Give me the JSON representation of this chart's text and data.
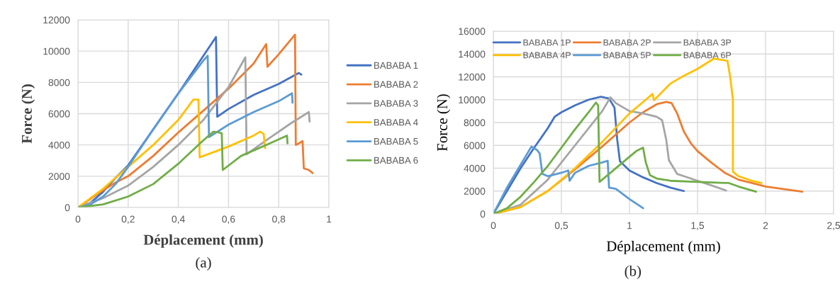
{
  "chart_data": [
    {
      "type": "line",
      "xlabel": "Déplacement (mm)",
      "ylabel": "Force (N)",
      "annotations": [
        "(a)"
      ],
      "xlim": [
        0,
        1
      ],
      "xticks": [
        0,
        {
          "value": 0.2,
          "label": "0,2"
        },
        {
          "value": 0.4,
          "label": "0,4"
        },
        {
          "value": 0.6,
          "label": "0,6"
        },
        {
          "value": 0.8,
          "label": "0,8"
        },
        1
      ],
      "ylim": [
        0,
        12000
      ],
      "yticks": [
        0,
        2000,
        4000,
        6000,
        8000,
        10000,
        12000
      ],
      "grid": true,
      "legend": "right",
      "series": [
        {
          "name": "BABABA 1",
          "color": "#4472c4",
          "x": [
            0,
            0.05,
            0.1,
            0.15,
            0.2,
            0.3,
            0.4,
            0.5,
            0.55,
            0.555,
            0.6,
            0.7,
            0.8,
            0.88,
            0.89
          ],
          "values": [
            0,
            300,
            1000,
            1900,
            2700,
            5000,
            7300,
            9700,
            10900,
            5800,
            6300,
            7200,
            7900,
            8600,
            8500
          ]
        },
        {
          "name": "BABABA 2",
          "color": "#ed7d31",
          "x": [
            0,
            0.1,
            0.15,
            0.2,
            0.3,
            0.4,
            0.5,
            0.6,
            0.7,
            0.75,
            0.755,
            0.8,
            0.865,
            0.868,
            0.88,
            0.895,
            0.9,
            0.92,
            0.935
          ],
          "values": [
            0,
            1100,
            1600,
            2000,
            3300,
            4800,
            6200,
            7600,
            9200,
            10450,
            9000,
            9800,
            11050,
            4000,
            4100,
            4250,
            2500,
            2400,
            2200
          ]
        },
        {
          "name": "BABABA 3",
          "color": "#a5a5a5",
          "x": [
            0,
            0.1,
            0.2,
            0.3,
            0.4,
            0.5,
            0.6,
            0.667,
            0.672,
            0.75,
            0.85,
            0.92,
            0.923
          ],
          "values": [
            0,
            600,
            1400,
            2600,
            4000,
            5600,
            7700,
            9600,
            3400,
            4300,
            5400,
            6100,
            5500
          ]
        },
        {
          "name": "BABABA 4",
          "color": "#ffc000",
          "x": [
            0,
            0.1,
            0.2,
            0.3,
            0.4,
            0.46,
            0.48,
            0.485,
            0.5,
            0.6,
            0.7,
            0.726,
            0.74,
            0.746
          ],
          "values": [
            0,
            1200,
            2600,
            4000,
            5600,
            6900,
            6900,
            3200,
            3300,
            3900,
            4600,
            4850,
            4700,
            3800
          ]
        },
        {
          "name": "BABABA 5",
          "color": "#5b9bd5",
          "x": [
            0,
            0.05,
            0.1,
            0.15,
            0.2,
            0.3,
            0.4,
            0.5,
            0.517,
            0.522,
            0.6,
            0.7,
            0.8,
            0.853,
            0.855
          ],
          "values": [
            0,
            200,
            700,
            1500,
            2600,
            5000,
            7300,
            9400,
            9700,
            4500,
            5300,
            6100,
            6800,
            7300,
            6700
          ]
        },
        {
          "name": "BABABA 6",
          "color": "#70ad47",
          "x": [
            0,
            0.1,
            0.2,
            0.3,
            0.4,
            0.5,
            0.54,
            0.56,
            0.573,
            0.577,
            0.65,
            0.75,
            0.833,
            0.835
          ],
          "values": [
            0,
            200,
            700,
            1500,
            2800,
            4300,
            4850,
            4800,
            4750,
            2400,
            3300,
            4000,
            4600,
            4100
          ]
        }
      ]
    },
    {
      "type": "line",
      "xlabel": "Déplacement (mm)",
      "ylabel": "Force (N)",
      "annotations": [
        "(b)"
      ],
      "xlim": [
        0,
        2.5
      ],
      "xticks": [
        0,
        {
          "value": 0.5,
          "label": "0,5"
        },
        1,
        {
          "value": 1.5,
          "label": "1,5"
        },
        2,
        {
          "value": 2.5,
          "label": "2,5"
        }
      ],
      "ylim": [
        0,
        16000
      ],
      "yticks": [
        0,
        2000,
        4000,
        6000,
        8000,
        10000,
        12000,
        14000,
        16000
      ],
      "grid": true,
      "legend": "top",
      "series": [
        {
          "name": "BABABA 1P",
          "color": "#4472c4",
          "x": [
            0,
            0.1,
            0.2,
            0.3,
            0.4,
            0.45,
            0.5,
            0.6,
            0.7,
            0.79,
            0.85,
            0.89,
            0.91,
            0.93,
            1,
            1.1,
            1.2,
            1.3,
            1.4
          ],
          "values": [
            0,
            2000,
            4000,
            5800,
            7500,
            8500,
            8900,
            9500,
            10000,
            10250,
            10100,
            9300,
            6500,
            4600,
            3800,
            3200,
            2700,
            2300,
            2000
          ]
        },
        {
          "name": "BABABA 2P",
          "color": "#ed7d31",
          "x": [
            0,
            0.2,
            0.4,
            0.6,
            0.8,
            1,
            1.1,
            1.2,
            1.27,
            1.31,
            1.35,
            1.4,
            1.45,
            1.5,
            1.6,
            1.7,
            1.8,
            1.9,
            2,
            2.27
          ],
          "values": [
            0,
            600,
            2000,
            3900,
            5900,
            8000,
            8900,
            9600,
            9800,
            9700,
            8800,
            7200,
            6200,
            5500,
            4500,
            3600,
            3000,
            2700,
            2400,
            1950
          ]
        },
        {
          "name": "BABABA 3P",
          "color": "#a5a5a5",
          "x": [
            0,
            0.2,
            0.4,
            0.6,
            0.8,
            0.86,
            0.9,
            1,
            1.1,
            1.2,
            1.24,
            1.27,
            1.29,
            1.35,
            1.4,
            1.5,
            1.6,
            1.71
          ],
          "values": [
            0,
            800,
            3000,
            6000,
            9000,
            10200,
            9700,
            9000,
            8800,
            8500,
            8200,
            6500,
            4700,
            3500,
            3300,
            2900,
            2500,
            2050
          ]
        },
        {
          "name": "BABABA 4P",
          "color": "#ffc000",
          "x": [
            0,
            0.2,
            0.4,
            0.6,
            0.8,
            1,
            1.1,
            1.17,
            1.18,
            1.3,
            1.4,
            1.5,
            1.62,
            1.72,
            1.74,
            1.76,
            1.76,
            1.8,
            1.9,
            1.97
          ],
          "values": [
            0,
            600,
            2000,
            4000,
            6300,
            8800,
            9800,
            10500,
            9950,
            11400,
            12100,
            12700,
            13600,
            13400,
            12000,
            10000,
            3700,
            3300,
            2900,
            2700
          ]
        },
        {
          "name": "BABABA 5P",
          "color": "#5b9bd5",
          "x": [
            0,
            0.1,
            0.2,
            0.28,
            0.32,
            0.34,
            0.36,
            0.4,
            0.5,
            0.55,
            0.56,
            0.6,
            0.7,
            0.8,
            0.84,
            0.85,
            0.9,
            1,
            1.1
          ],
          "values": [
            0,
            2300,
            4300,
            5900,
            5600,
            5300,
            3500,
            3300,
            3600,
            3800,
            2900,
            3600,
            4200,
            4500,
            4650,
            2300,
            2200,
            1300,
            500
          ]
        },
        {
          "name": "BABABA 6P",
          "color": "#70ad47",
          "x": [
            0,
            0.1,
            0.2,
            0.3,
            0.4,
            0.5,
            0.6,
            0.7,
            0.754,
            0.77,
            0.78,
            0.85,
            0.95,
            1.05,
            1.1,
            1.12,
            1.15,
            1.2,
            1.3,
            1.5,
            1.73,
            1.8,
            1.93
          ],
          "values": [
            0,
            500,
            1500,
            2800,
            4200,
            5800,
            7400,
            8900,
            9750,
            9500,
            2800,
            3500,
            4500,
            5500,
            5800,
            4500,
            3400,
            3100,
            2900,
            2800,
            2700,
            2400,
            1950
          ]
        }
      ]
    }
  ]
}
